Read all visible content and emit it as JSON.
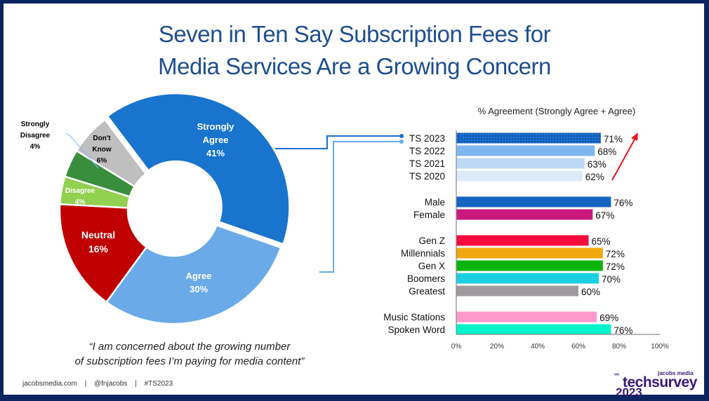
{
  "slide": {
    "title_line1": "Seven in Ten Say Subscription Fees for",
    "title_line2": "Media Services Are a Growing Concern",
    "quote_line1": "“I am concerned about the growing number",
    "quote_line2": "of subscription fees I’m paying for media content”",
    "footer": [
      "jacobsmedia.com",
      "|",
      "@fnjacobs",
      "|",
      "#TS2023"
    ],
    "logo": {
      "small": "jacobs media",
      "main": "techsurvey",
      "year": "2023"
    }
  },
  "chart_data": [
    {
      "type": "pie",
      "variant": "donut",
      "title": "",
      "slices": [
        {
          "label": "Strongly Agree",
          "label_lines": [
            "Strongly",
            "Agree",
            "41%"
          ],
          "value": 41,
          "color": "#1874cd",
          "label_color": "#ffffff"
        },
        {
          "label": "Agree",
          "label_lines": [
            "Agree",
            "30%"
          ],
          "value": 30,
          "color": "#6aaae8",
          "label_color": "#ffffff"
        },
        {
          "label": "Neutral",
          "label_lines": [
            "Neutral",
            "16%"
          ],
          "value": 16,
          "color": "#c00000",
          "label_color": "#ffffff"
        },
        {
          "label": "Disagree",
          "label_lines": [
            "Disagree",
            "4%"
          ],
          "value": 4,
          "color": "#92d050",
          "label_color": "#ffffff"
        },
        {
          "label": "Strongly Disagree",
          "label_lines": [
            "Strongly",
            "Disagree",
            "4%"
          ],
          "value": 4,
          "color": "#388e3c",
          "label_color": "#000000"
        },
        {
          "label": "Don't Know",
          "label_lines": [
            "Don't",
            "Know",
            "6%"
          ],
          "value": 6,
          "color": "#bfbfbf",
          "label_color": "#000000"
        }
      ]
    },
    {
      "type": "bar",
      "orientation": "horizontal",
      "title": "% Agreement (Strongly Agree + Agree)",
      "xlabel": "",
      "ylabel": "",
      "xlim": [
        0,
        100
      ],
      "xticks": [
        "0%",
        "20%",
        "40%",
        "60%",
        "80%",
        "100%"
      ],
      "grid": false,
      "groups": [
        [
          {
            "label": "TS 2023",
            "value": 71,
            "color": "#1a6fcf",
            "pattern": "dotted"
          },
          {
            "label": "TS 2022",
            "value": 68,
            "color": "#7fb6ee"
          },
          {
            "label": "TS 2021",
            "value": 63,
            "color": "#bcd8f5"
          },
          {
            "label": "TS 2020",
            "value": 62,
            "color": "#dbe9f9"
          }
        ],
        [
          {
            "label": "Male",
            "value": 76,
            "color": "#1565c0"
          },
          {
            "label": "Female",
            "value": 67,
            "color": "#c9197c"
          }
        ],
        [
          {
            "label": "Gen Z",
            "value": 65,
            "color": "#f50c3c"
          },
          {
            "label": "Millennials",
            "value": 72,
            "color": "#f0a80e"
          },
          {
            "label": "Gen X",
            "value": 72,
            "color": "#0cb40c"
          },
          {
            "label": "Boomers",
            "value": 70,
            "color": "#1dcfe3"
          },
          {
            "label": "Greatest",
            "value": 60,
            "color": "#a09a9f"
          }
        ],
        [
          {
            "label": "Music Stations",
            "value": 69,
            "color": "#ff99cc"
          },
          {
            "label": "Spoken Word",
            "value": 76,
            "color": "#00f5c8"
          }
        ]
      ],
      "annotations": [
        {
          "type": "arrow",
          "description": "upward trend TS 2020 to TS 2023",
          "color": "#e8141c"
        }
      ]
    }
  ]
}
